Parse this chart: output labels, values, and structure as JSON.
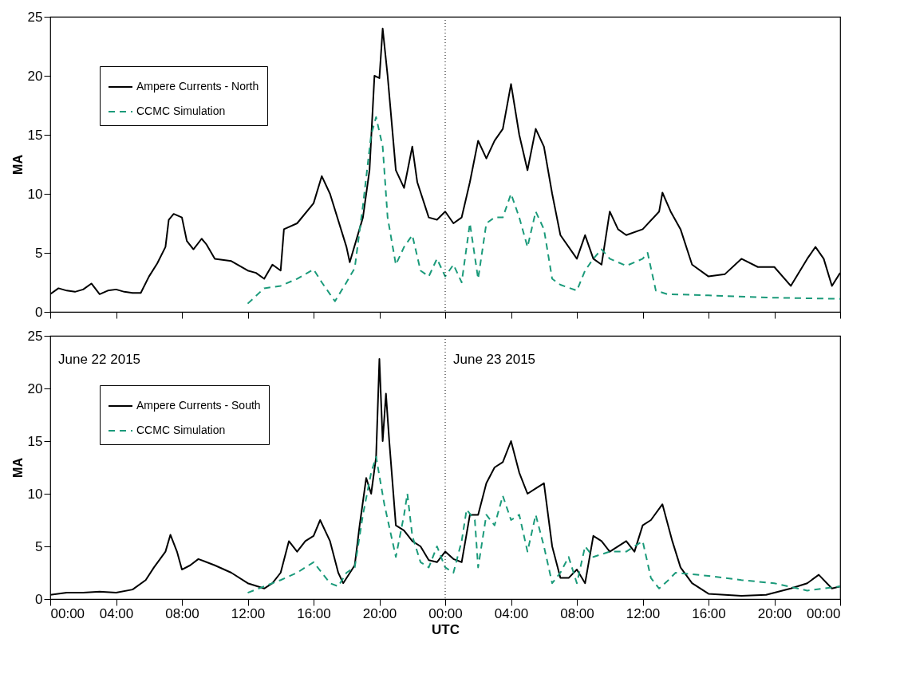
{
  "chart_data": [
    {
      "type": "line",
      "ylabel": "MA",
      "xlim": [
        "2015-06-22T00:00",
        "2015-06-24T00:00"
      ],
      "ylim": [
        0,
        25
      ],
      "yticks": [
        0,
        5,
        10,
        15,
        20,
        25
      ],
      "tick_labels": "y",
      "grid": false,
      "legend": "top left",
      "xticks": [
        {
          "value": "2015-06-22T00:00",
          "label": null
        },
        {
          "value": "2015-06-22T04:00",
          "label": null
        },
        {
          "value": "2015-06-22T08:00",
          "label": null
        },
        {
          "value": "2015-06-22T12:00",
          "label": null
        },
        {
          "value": "2015-06-22T16:00",
          "label": null
        },
        {
          "value": "2015-06-22T20:00",
          "label": null
        },
        {
          "value": "2015-06-23T00:00",
          "label": null
        },
        {
          "value": "2015-06-23T04:00",
          "label": null
        },
        {
          "value": "2015-06-23T08:00",
          "label": null
        },
        {
          "value": "2015-06-23T12:00",
          "label": null
        },
        {
          "value": "2015-06-23T16:00",
          "label": null
        },
        {
          "value": "2015-06-23T20:00",
          "label": null
        },
        {
          "value": "2015-06-24T00:00",
          "label": null
        }
      ],
      "ref_lines": [
        {
          "axis": "x",
          "value": "2015-06-23T00:00",
          "line_style": "dotted",
          "color": "#000000"
        }
      ],
      "series": [
        {
          "name": "Ampere Currents - North",
          "color": "#000000",
          "line_style": "solid",
          "x": [
            "2015-06-22T00:00",
            "2015-06-22T00:30",
            "2015-06-22T01:00",
            "2015-06-22T01:30",
            "2015-06-22T02:00",
            "2015-06-22T02:30",
            "2015-06-22T03:00",
            "2015-06-22T03:30",
            "2015-06-22T04:00",
            "2015-06-22T04:30",
            "2015-06-22T05:00",
            "2015-06-22T05:30",
            "2015-06-22T06:00",
            "2015-06-22T06:30",
            "2015-06-22T07:00",
            "2015-06-22T07:12",
            "2015-06-22T07:30",
            "2015-06-22T08:00",
            "2015-06-22T08:18",
            "2015-06-22T08:42",
            "2015-06-22T09:12",
            "2015-06-22T09:30",
            "2015-06-22T10:00",
            "2015-06-22T11:00",
            "2015-06-22T12:00",
            "2015-06-22T12:30",
            "2015-06-22T13:00",
            "2015-06-22T13:30",
            "2015-06-22T14:00",
            "2015-06-22T14:12",
            "2015-06-22T15:00",
            "2015-06-22T16:00",
            "2015-06-22T16:30",
            "2015-06-22T17:00",
            "2015-06-22T18:00",
            "2015-06-22T18:12",
            "2015-06-22T19:00",
            "2015-06-22T19:24",
            "2015-06-22T19:42",
            "2015-06-22T20:00",
            "2015-06-22T20:12",
            "2015-06-22T20:30",
            "2015-06-22T21:00",
            "2015-06-22T21:30",
            "2015-06-22T22:00",
            "2015-06-22T22:18",
            "2015-06-22T23:00",
            "2015-06-22T23:30",
            "2015-06-23T00:00",
            "2015-06-23T00:30",
            "2015-06-23T01:00",
            "2015-06-23T01:30",
            "2015-06-23T02:00",
            "2015-06-23T02:30",
            "2015-06-23T03:00",
            "2015-06-23T03:30",
            "2015-06-23T04:00",
            "2015-06-23T04:30",
            "2015-06-23T05:00",
            "2015-06-23T05:30",
            "2015-06-23T06:00",
            "2015-06-23T06:30",
            "2015-06-23T07:00",
            "2015-06-23T08:00",
            "2015-06-23T08:30",
            "2015-06-23T09:00",
            "2015-06-23T09:30",
            "2015-06-23T10:00",
            "2015-06-23T10:30",
            "2015-06-23T11:00",
            "2015-06-23T12:00",
            "2015-06-23T13:00",
            "2015-06-23T13:12",
            "2015-06-23T13:42",
            "2015-06-23T14:18",
            "2015-06-23T15:00",
            "2015-06-23T16:00",
            "2015-06-23T17:00",
            "2015-06-23T18:00",
            "2015-06-23T19:00",
            "2015-06-23T20:00",
            "2015-06-23T21:00",
            "2015-06-23T22:00",
            "2015-06-23T22:30",
            "2015-06-23T23:00",
            "2015-06-23T23:30",
            "2015-06-24T00:00"
          ],
          "values": [
            1.5,
            2,
            1.8,
            1.7,
            1.9,
            2.4,
            1.5,
            1.8,
            1.9,
            1.7,
            1.6,
            1.6,
            3,
            4.1,
            5.5,
            7.8,
            8.3,
            8,
            6,
            5.3,
            6.2,
            5.7,
            4.5,
            4.3,
            3.5,
            3.3,
            2.8,
            4,
            3.5,
            7,
            7.5,
            9.2,
            11.5,
            10,
            5.5,
            4.2,
            8,
            12,
            20,
            19.8,
            24,
            20,
            12,
            10.5,
            14,
            11,
            8,
            7.8,
            8.5,
            7.5,
            8,
            11,
            14.5,
            13,
            14.5,
            15.5,
            19.3,
            15,
            12,
            15.5,
            14,
            10,
            6.5,
            4.5,
            6.5,
            4.5,
            4,
            8.5,
            7,
            6.5,
            7,
            8.5,
            10.1,
            8.5,
            7,
            4,
            3,
            3.2,
            4.5,
            3.8,
            3.8,
            2.2,
            4.5,
            5.5,
            4.5,
            2.2,
            3.3
          ]
        },
        {
          "name": "CCMC Simulation",
          "color": "#1a9a7a",
          "line_style": "dashed",
          "x": [
            "2015-06-22T12:00",
            "2015-06-22T13:00",
            "2015-06-22T14:00",
            "2015-06-22T15:00",
            "2015-06-22T16:00",
            "2015-06-22T16:30",
            "2015-06-22T17:18",
            "2015-06-22T18:00",
            "2015-06-22T18:30",
            "2015-06-22T19:00",
            "2015-06-22T19:30",
            "2015-06-22T19:48",
            "2015-06-22T20:12",
            "2015-06-22T20:30",
            "2015-06-22T21:00",
            "2015-06-22T21:30",
            "2015-06-22T22:00",
            "2015-06-22T22:30",
            "2015-06-22T23:00",
            "2015-06-22T23:30",
            "2015-06-23T00:00",
            "2015-06-23T00:30",
            "2015-06-23T01:00",
            "2015-06-23T01:30",
            "2015-06-23T02:00",
            "2015-06-23T02:30",
            "2015-06-23T03:00",
            "2015-06-23T03:30",
            "2015-06-23T04:00",
            "2015-06-23T04:30",
            "2015-06-23T05:00",
            "2015-06-23T05:30",
            "2015-06-23T06:00",
            "2015-06-23T06:30",
            "2015-06-23T07:00",
            "2015-06-23T08:00",
            "2015-06-23T08:30",
            "2015-06-23T09:00",
            "2015-06-23T09:30",
            "2015-06-23T10:00",
            "2015-06-23T11:00",
            "2015-06-23T12:00",
            "2015-06-23T12:18",
            "2015-06-23T12:48",
            "2015-06-23T13:30",
            "2015-06-23T16:00",
            "2015-06-23T20:00",
            "2015-06-24T00:00"
          ],
          "values": [
            0.7,
            2,
            2.2,
            2.8,
            3.6,
            2.5,
            0.9,
            2.5,
            3.7,
            9,
            15,
            16.5,
            14,
            8,
            4,
            5.5,
            6.5,
            3.5,
            3,
            4.5,
            3,
            4,
            2.5,
            7.5,
            2.8,
            7.5,
            8,
            8,
            10,
            8,
            5.5,
            8.5,
            7,
            2.8,
            2.3,
            1.8,
            3.5,
            4.5,
            5.3,
            4.5,
            3.9,
            4.5,
            5,
            1.8,
            1.5,
            1.4,
            1.2,
            1.1
          ]
        }
      ]
    },
    {
      "type": "line",
      "ylabel": "MA",
      "xlabel": "UTC",
      "xlim": [
        "2015-06-22T00:00",
        "2015-06-24T00:00"
      ],
      "ylim": [
        0,
        25
      ],
      "yticks": [
        0,
        5,
        10,
        15,
        20,
        25
      ],
      "grid": false,
      "legend": "top left",
      "xticks": [
        {
          "value": "2015-06-22T00:00",
          "label": "00:00"
        },
        {
          "value": "2015-06-22T04:00",
          "label": "04:00"
        },
        {
          "value": "2015-06-22T08:00",
          "label": "08:00"
        },
        {
          "value": "2015-06-22T12:00",
          "label": "12:00"
        },
        {
          "value": "2015-06-22T16:00",
          "label": "16:00"
        },
        {
          "value": "2015-06-22T20:00",
          "label": "20:00"
        },
        {
          "value": "2015-06-23T00:00",
          "label": "00:00"
        },
        {
          "value": "2015-06-23T04:00",
          "label": "04:00"
        },
        {
          "value": "2015-06-23T08:00",
          "label": "08:00"
        },
        {
          "value": "2015-06-23T12:00",
          "label": "12:00"
        },
        {
          "value": "2015-06-23T16:00",
          "label": "16:00"
        },
        {
          "value": "2015-06-23T20:00",
          "label": "20:00"
        },
        {
          "value": "2015-06-24T00:00",
          "label": "00:00"
        }
      ],
      "annotations": [
        "June 22 2015",
        "June 23 2015"
      ],
      "ref_lines": [
        {
          "axis": "x",
          "value": "2015-06-23T00:00",
          "line_style": "dotted",
          "color": "#000000"
        }
      ],
      "series": [
        {
          "name": "Ampere Currents - South",
          "color": "#000000",
          "line_style": "solid",
          "x": [
            "2015-06-22T00:00",
            "2015-06-22T01:00",
            "2015-06-22T02:00",
            "2015-06-22T03:00",
            "2015-06-22T04:00",
            "2015-06-22T05:00",
            "2015-06-22T05:48",
            "2015-06-22T06:18",
            "2015-06-22T07:00",
            "2015-06-22T07:18",
            "2015-06-22T07:42",
            "2015-06-22T08:00",
            "2015-06-22T08:30",
            "2015-06-22T09:00",
            "2015-06-22T10:00",
            "2015-06-22T11:00",
            "2015-06-22T12:00",
            "2015-06-22T13:00",
            "2015-06-22T13:30",
            "2015-06-22T14:00",
            "2015-06-22T14:30",
            "2015-06-22T15:00",
            "2015-06-22T15:30",
            "2015-06-22T16:00",
            "2015-06-22T16:24",
            "2015-06-22T17:00",
            "2015-06-22T17:30",
            "2015-06-22T17:48",
            "2015-06-22T18:30",
            "2015-06-22T18:48",
            "2015-06-22T19:12",
            "2015-06-22T19:30",
            "2015-06-22T19:48",
            "2015-06-22T20:00",
            "2015-06-22T20:12",
            "2015-06-22T20:24",
            "2015-06-22T20:36",
            "2015-06-22T21:00",
            "2015-06-22T21:30",
            "2015-06-22T22:00",
            "2015-06-22T22:30",
            "2015-06-22T23:00",
            "2015-06-22T23:30",
            "2015-06-23T00:00",
            "2015-06-23T00:30",
            "2015-06-23T01:00",
            "2015-06-23T01:30",
            "2015-06-23T02:00",
            "2015-06-23T02:30",
            "2015-06-23T03:00",
            "2015-06-23T03:30",
            "2015-06-23T04:00",
            "2015-06-23T04:30",
            "2015-06-23T05:00",
            "2015-06-23T05:30",
            "2015-06-23T06:00",
            "2015-06-23T06:30",
            "2015-06-23T07:00",
            "2015-06-23T07:30",
            "2015-06-23T08:00",
            "2015-06-23T08:30",
            "2015-06-23T09:00",
            "2015-06-23T09:30",
            "2015-06-23T10:00",
            "2015-06-23T11:00",
            "2015-06-23T11:30",
            "2015-06-23T12:00",
            "2015-06-23T12:30",
            "2015-06-23T13:12",
            "2015-06-23T13:48",
            "2015-06-23T14:18",
            "2015-06-23T15:00",
            "2015-06-23T16:00",
            "2015-06-23T18:00",
            "2015-06-23T19:30",
            "2015-06-23T21:00",
            "2015-06-23T22:00",
            "2015-06-23T22:42",
            "2015-06-23T23:30",
            "2015-06-24T00:00"
          ],
          "values": [
            0.4,
            0.6,
            0.6,
            0.7,
            0.6,
            0.9,
            1.8,
            3,
            4.5,
            6.1,
            4.5,
            2.8,
            3.2,
            3.8,
            3.2,
            2.5,
            1.5,
            1,
            1.5,
            2.5,
            5.5,
            4.5,
            5.5,
            6,
            7.5,
            5.5,
            2.5,
            1.5,
            3.2,
            7,
            11.5,
            10,
            13.5,
            22.8,
            15,
            19.5,
            15,
            7,
            6.5,
            5.5,
            5,
            3.7,
            3.5,
            4.5,
            3.8,
            3.5,
            8,
            8,
            11,
            12.5,
            13,
            15,
            12,
            10,
            10.5,
            11,
            5,
            2,
            2,
            2.8,
            1.5,
            6,
            5.5,
            4.5,
            5.5,
            4.5,
            7,
            7.5,
            9,
            5.5,
            3,
            1.5,
            0.5,
            0.3,
            0.4,
            1,
            1.5,
            2.3,
            1,
            1.2
          ]
        },
        {
          "name": "CCMC Simulation",
          "color": "#1a9a7a",
          "line_style": "dashed",
          "x": [
            "2015-06-22T12:00",
            "2015-06-22T13:00",
            "2015-06-22T14:00",
            "2015-06-22T15:00",
            "2015-06-22T16:00",
            "2015-06-22T17:00",
            "2015-06-22T17:30",
            "2015-06-22T18:00",
            "2015-06-22T18:30",
            "2015-06-22T19:00",
            "2015-06-22T19:30",
            "2015-06-22T19:48",
            "2015-06-22T20:18",
            "2015-06-22T21:00",
            "2015-06-22T21:30",
            "2015-06-22T21:42",
            "2015-06-22T22:00",
            "2015-06-22T22:30",
            "2015-06-22T23:00",
            "2015-06-22T23:30",
            "2015-06-23T00:00",
            "2015-06-23T00:30",
            "2015-06-23T01:00",
            "2015-06-23T01:18",
            "2015-06-23T01:48",
            "2015-06-23T02:00",
            "2015-06-23T02:30",
            "2015-06-23T03:00",
            "2015-06-23T03:30",
            "2015-06-23T04:00",
            "2015-06-23T04:30",
            "2015-06-23T05:00",
            "2015-06-23T05:30",
            "2015-06-23T06:00",
            "2015-06-23T06:30",
            "2015-06-23T07:00",
            "2015-06-23T07:30",
            "2015-06-23T08:00",
            "2015-06-23T08:30",
            "2015-06-23T09:00",
            "2015-06-23T10:00",
            "2015-06-23T11:00",
            "2015-06-23T12:00",
            "2015-06-23T12:30",
            "2015-06-23T13:00",
            "2015-06-23T13:30",
            "2015-06-23T14:00",
            "2015-06-23T16:00",
            "2015-06-23T18:00",
            "2015-06-23T20:00",
            "2015-06-23T22:00",
            "2015-06-23T23:00",
            "2015-06-24T00:00"
          ],
          "values": [
            0.6,
            1.2,
            1.8,
            2.5,
            3.5,
            1.5,
            1.2,
            2.5,
            3,
            8,
            12,
            13.5,
            9,
            4,
            8,
            10,
            6,
            3.5,
            3,
            5,
            3,
            2.5,
            5.5,
            8.5,
            7.5,
            3,
            8,
            7,
            9.8,
            7.5,
            8,
            4.5,
            8,
            5,
            1.5,
            2.5,
            4,
            1.5,
            5,
            4,
            4.5,
            4.5,
            5.5,
            2,
            1,
            1.7,
            2.5,
            2.2,
            1.8,
            1.5,
            0.8,
            1,
            1.2
          ]
        }
      ]
    }
  ]
}
